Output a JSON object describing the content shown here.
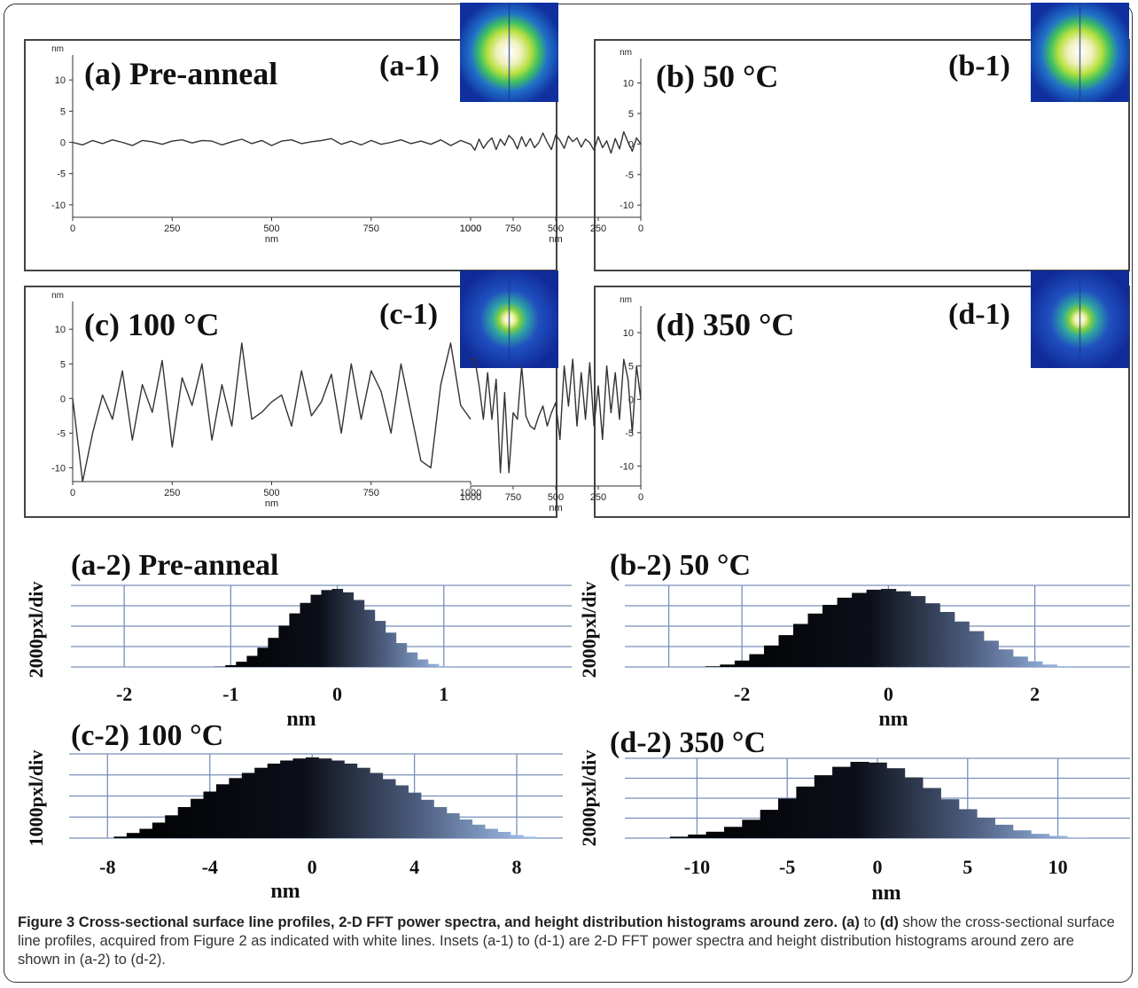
{
  "chart_data": [
    {
      "id": "a",
      "type": "line",
      "title": "(a) Pre-anneal",
      "inset_label": "(a-1)",
      "xlabel": "nm",
      "ylabel": "nm",
      "xlim": [
        0,
        1000
      ],
      "ylim": [
        -12,
        14
      ],
      "xticks": [
        0,
        250,
        500,
        750,
        1000
      ],
      "yticks": [
        10,
        5,
        0,
        -5,
        -10
      ],
      "x": [
        0,
        25,
        50,
        75,
        100,
        125,
        150,
        175,
        200,
        225,
        250,
        275,
        300,
        325,
        350,
        375,
        400,
        425,
        450,
        475,
        500,
        525,
        550,
        575,
        600,
        625,
        650,
        675,
        700,
        725,
        750,
        775,
        800,
        825,
        850,
        875,
        900,
        925,
        950,
        975,
        1000
      ],
      "y": [
        0,
        -0.4,
        0.3,
        -0.2,
        0.4,
        0,
        -0.5,
        0.3,
        0.1,
        -0.3,
        0.2,
        0.4,
        -0.1,
        0.3,
        0.2,
        -0.4,
        0.1,
        0.5,
        -0.2,
        0.3,
        -0.5,
        0.2,
        0.4,
        -0.2,
        0.1,
        0.3,
        0.6,
        -0.3,
        0.2,
        -0.4,
        0.3,
        -0.3,
        0,
        0.4,
        -0.2,
        0.2,
        -0.3,
        0.4,
        -0.5,
        0.3,
        -0.3
      ]
    },
    {
      "id": "b",
      "type": "line",
      "title": "(b) 50 °C",
      "inset_label": "(b-1)",
      "xlabel": "nm",
      "ylabel": "nm",
      "xlim": [
        0,
        1000
      ],
      "ylim": [
        -12,
        14
      ],
      "xticks": [
        0,
        250,
        500,
        750,
        1000
      ],
      "yticks": [
        10,
        5,
        0,
        -5,
        -10
      ],
      "x": [
        0,
        25,
        50,
        75,
        100,
        125,
        150,
        175,
        200,
        225,
        250,
        275,
        300,
        325,
        350,
        375,
        400,
        425,
        450,
        475,
        500,
        525,
        550,
        575,
        600,
        625,
        650,
        675,
        700,
        725,
        750,
        775,
        800,
        825,
        850,
        875,
        900,
        925,
        950,
        975,
        1000
      ],
      "y": [
        0,
        1,
        -1.2,
        0.3,
        2,
        -0.8,
        0.9,
        -1.5,
        0.5,
        -0.6,
        1.2,
        -1,
        0.2,
        0.8,
        -0.5,
        1,
        0.4,
        1.3,
        -0.7,
        0.6,
        1.5,
        -0.9,
        0.3,
        1.8,
        0.2,
        -0.6,
        0.9,
        -0.4,
        1.2,
        -0.8,
        0.7,
        1.4,
        -0.2,
        0.8,
        -0.9,
        1,
        0.3,
        -0.7,
        0.8,
        -1,
        0
      ]
    },
    {
      "id": "c",
      "type": "line",
      "title": "(c) 100 °C",
      "inset_label": "(c-1)",
      "xlabel": "nm",
      "ylabel": "nm",
      "xlim": [
        0,
        1000
      ],
      "ylim": [
        -12,
        14
      ],
      "xticks": [
        0,
        250,
        500,
        750,
        1000
      ],
      "yticks": [
        10,
        5,
        0,
        -5,
        -10
      ],
      "x": [
        0,
        25,
        50,
        75,
        100,
        125,
        150,
        175,
        200,
        225,
        250,
        275,
        300,
        325,
        350,
        375,
        400,
        425,
        450,
        475,
        500,
        525,
        550,
        575,
        600,
        625,
        650,
        675,
        700,
        725,
        750,
        775,
        800,
        825,
        850,
        875,
        900,
        925,
        950,
        975,
        1000
      ],
      "y": [
        0,
        -12,
        -5,
        0.5,
        -3,
        4,
        -6,
        2,
        -2,
        5.5,
        -7,
        3,
        -1,
        5,
        -6,
        2,
        -4,
        8,
        -3,
        -2,
        -0.5,
        0.5,
        -4,
        4,
        -2.5,
        -0.5,
        3.5,
        -5,
        5,
        -3,
        4,
        1,
        -5,
        5,
        -2,
        -9,
        -10,
        2,
        8,
        -1,
        -3
      ]
    },
    {
      "id": "d",
      "type": "line",
      "title": "(d) 350 °C",
      "inset_label": "(d-1)",
      "xlabel": "nm",
      "ylabel": "nm",
      "xlim": [
        0,
        1000
      ],
      "ylim": [
        -13,
        14
      ],
      "xticks": [
        0,
        250,
        500,
        750,
        1000
      ],
      "yticks": [
        10,
        5,
        0,
        -5,
        -10
      ],
      "x": [
        0,
        25,
        50,
        75,
        100,
        125,
        150,
        175,
        200,
        225,
        250,
        275,
        300,
        325,
        350,
        375,
        400,
        425,
        450,
        475,
        500,
        525,
        550,
        575,
        600,
        625,
        650,
        675,
        700,
        725,
        750,
        775,
        800,
        825,
        850,
        875,
        900,
        925,
        950,
        975,
        1000
      ],
      "y": [
        0,
        5,
        -5,
        3,
        6,
        -3,
        4,
        -2,
        5,
        -6,
        2,
        -4,
        5.5,
        -3,
        4,
        -4,
        6,
        -1,
        5,
        -6,
        -0.5,
        -2,
        -4,
        -1,
        -2.5,
        -4.5,
        -4,
        -2.5,
        5,
        -3,
        -2,
        -11,
        1,
        -11,
        3,
        -3,
        4,
        -3,
        2,
        6,
        6
      ]
    },
    {
      "id": "a2",
      "type": "bar",
      "title": "(a-2) Pre-anneal",
      "xlabel": "nm",
      "ylabel": "2000pxl/div",
      "xlim": [
        -2.5,
        2.2
      ],
      "xticks": [
        -2,
        -1,
        0,
        1
      ],
      "grid_x": [
        -2,
        -1,
        0,
        1
      ],
      "bins": [
        -1.2,
        -1.1,
        -1.0,
        -0.9,
        -0.8,
        -0.7,
        -0.6,
        -0.5,
        -0.4,
        -0.3,
        -0.2,
        -0.1,
        0,
        0.1,
        0.2,
        0.3,
        0.4,
        0.5,
        0.6,
        0.7,
        0.8,
        0.9,
        1.0,
        1.1
      ],
      "counts": [
        0,
        50,
        300,
        900,
        1900,
        3300,
        5000,
        7100,
        9200,
        11000,
        12400,
        13200,
        13400,
        12800,
        11500,
        9800,
        7900,
        5900,
        4100,
        2500,
        1300,
        500,
        150,
        0
      ]
    },
    {
      "id": "b2",
      "type": "bar",
      "title": "(b-2) 50 °C",
      "xlabel": "nm",
      "ylabel": "2000pxl/div",
      "xlim": [
        -3.6,
        3.3
      ],
      "xticks": [
        -2,
        0,
        2
      ],
      "grid_x": [
        -3,
        -2,
        0,
        2
      ],
      "bins": [
        -2.6,
        -2.4,
        -2.2,
        -2.0,
        -1.8,
        -1.6,
        -1.4,
        -1.2,
        -1.0,
        -0.8,
        -0.6,
        -0.4,
        -0.2,
        0,
        0.2,
        0.4,
        0.6,
        0.8,
        1.0,
        1.2,
        1.4,
        1.6,
        1.8,
        2.0,
        2.2,
        2.4,
        2.6
      ],
      "counts": [
        0,
        80,
        300,
        800,
        1600,
        2700,
        4000,
        5400,
        6700,
        7800,
        8700,
        9300,
        9700,
        9800,
        9500,
        8900,
        8000,
        6900,
        5700,
        4500,
        3300,
        2200,
        1300,
        700,
        300,
        100,
        0
      ]
    },
    {
      "id": "c2",
      "type": "bar",
      "title": "(c-2) 100 °C",
      "xlabel": "nm",
      "ylabel": "1000pxl/div",
      "xlim": [
        -9.5,
        9.8
      ],
      "xticks": [
        -8,
        -4,
        0,
        4,
        8
      ],
      "grid_x": [
        -8,
        -4,
        0,
        4,
        8
      ],
      "bins": [
        -8,
        -7.5,
        -7,
        -6.5,
        -6,
        -5.5,
        -5,
        -4.5,
        -4,
        -3.5,
        -3,
        -2.5,
        -2,
        -1.5,
        -1,
        -0.5,
        0,
        0.5,
        1,
        1.5,
        2,
        2.5,
        3,
        3.5,
        4,
        4.5,
        5,
        5.5,
        6,
        6.5,
        7,
        7.5,
        8,
        8.5,
        9
      ],
      "counts": [
        0,
        150,
        500,
        900,
        1500,
        2200,
        3000,
        3800,
        4500,
        5200,
        5800,
        6300,
        6800,
        7200,
        7500,
        7700,
        7800,
        7700,
        7500,
        7200,
        6800,
        6300,
        5700,
        5100,
        4400,
        3700,
        3000,
        2400,
        1800,
        1300,
        900,
        600,
        300,
        150,
        0
      ]
    },
    {
      "id": "d2",
      "type": "bar",
      "title": "(d-2) 350 °C",
      "xlabel": "nm",
      "ylabel": "2000pxl/div",
      "xlim": [
        -14,
        14
      ],
      "xticks": [
        -10,
        -5,
        0,
        5,
        10
      ],
      "grid_x": [
        -10,
        -5,
        0,
        5,
        10
      ],
      "bins": [
        -12,
        -11,
        -10,
        -9,
        -8,
        -7,
        -6,
        -5,
        -4,
        -3,
        -2,
        -1,
        0,
        1,
        2,
        3,
        4,
        5,
        6,
        7,
        8,
        9,
        10,
        11,
        12
      ],
      "counts": [
        0,
        200,
        500,
        900,
        1600,
        2600,
        4000,
        5600,
        7300,
        8900,
        10100,
        10800,
        10700,
        9900,
        8600,
        7100,
        5500,
        4100,
        2900,
        1900,
        1100,
        600,
        300,
        100,
        0
      ]
    }
  ],
  "caption": {
    "figure_label": "Figure 3",
    "title": "Cross-sectional surface line profiles, 2-D FFT power spectra, and height distribution histograms around zero.",
    "ref_a": "(a)",
    "to_1": "to",
    "ref_d": "(d)",
    "text": "show the cross-sectional surface line profiles, acquired from Figure 2 as indicated with white lines. Insets (a-1) to (d-1) are 2-D FFT power spectra and height distribution histograms around zero are shown in (a-2) to (d-2)."
  }
}
